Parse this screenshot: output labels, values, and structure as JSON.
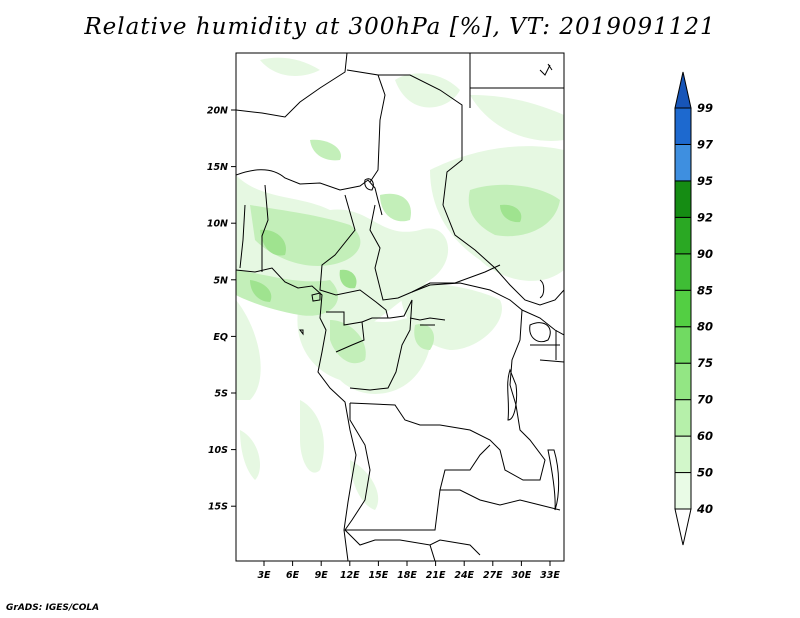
{
  "title": "Relative humidity at 300hPa [%], VT: 2019091121",
  "credit": "GrADS: IGES/COLA",
  "lat_labels": [
    "20N",
    "15N",
    "10N",
    "5N",
    "EQ",
    "5S",
    "10S",
    "15S"
  ],
  "lon_labels": [
    "3E",
    "6E",
    "9E",
    "12E",
    "15E",
    "18E",
    "21E",
    "24E",
    "27E",
    "30E",
    "33E"
  ],
  "colorbar": {
    "levels": [
      "40",
      "50",
      "60",
      "70",
      "75",
      "80",
      "85",
      "90",
      "92",
      "95",
      "97",
      "99"
    ],
    "colors": [
      "#ffffff",
      "#e9fbe6",
      "#d2f7ca",
      "#b6f0aa",
      "#93e684",
      "#71da62",
      "#53cf43",
      "#3fbd35",
      "#2aa823",
      "#158c13",
      "#3e8fe0",
      "#1d69cf",
      "#1755b8"
    ]
  },
  "field_color_light": "#e6f8e2",
  "field_color_mid": "#c3efb9",
  "field_color_dark": "#9fe38f"
}
